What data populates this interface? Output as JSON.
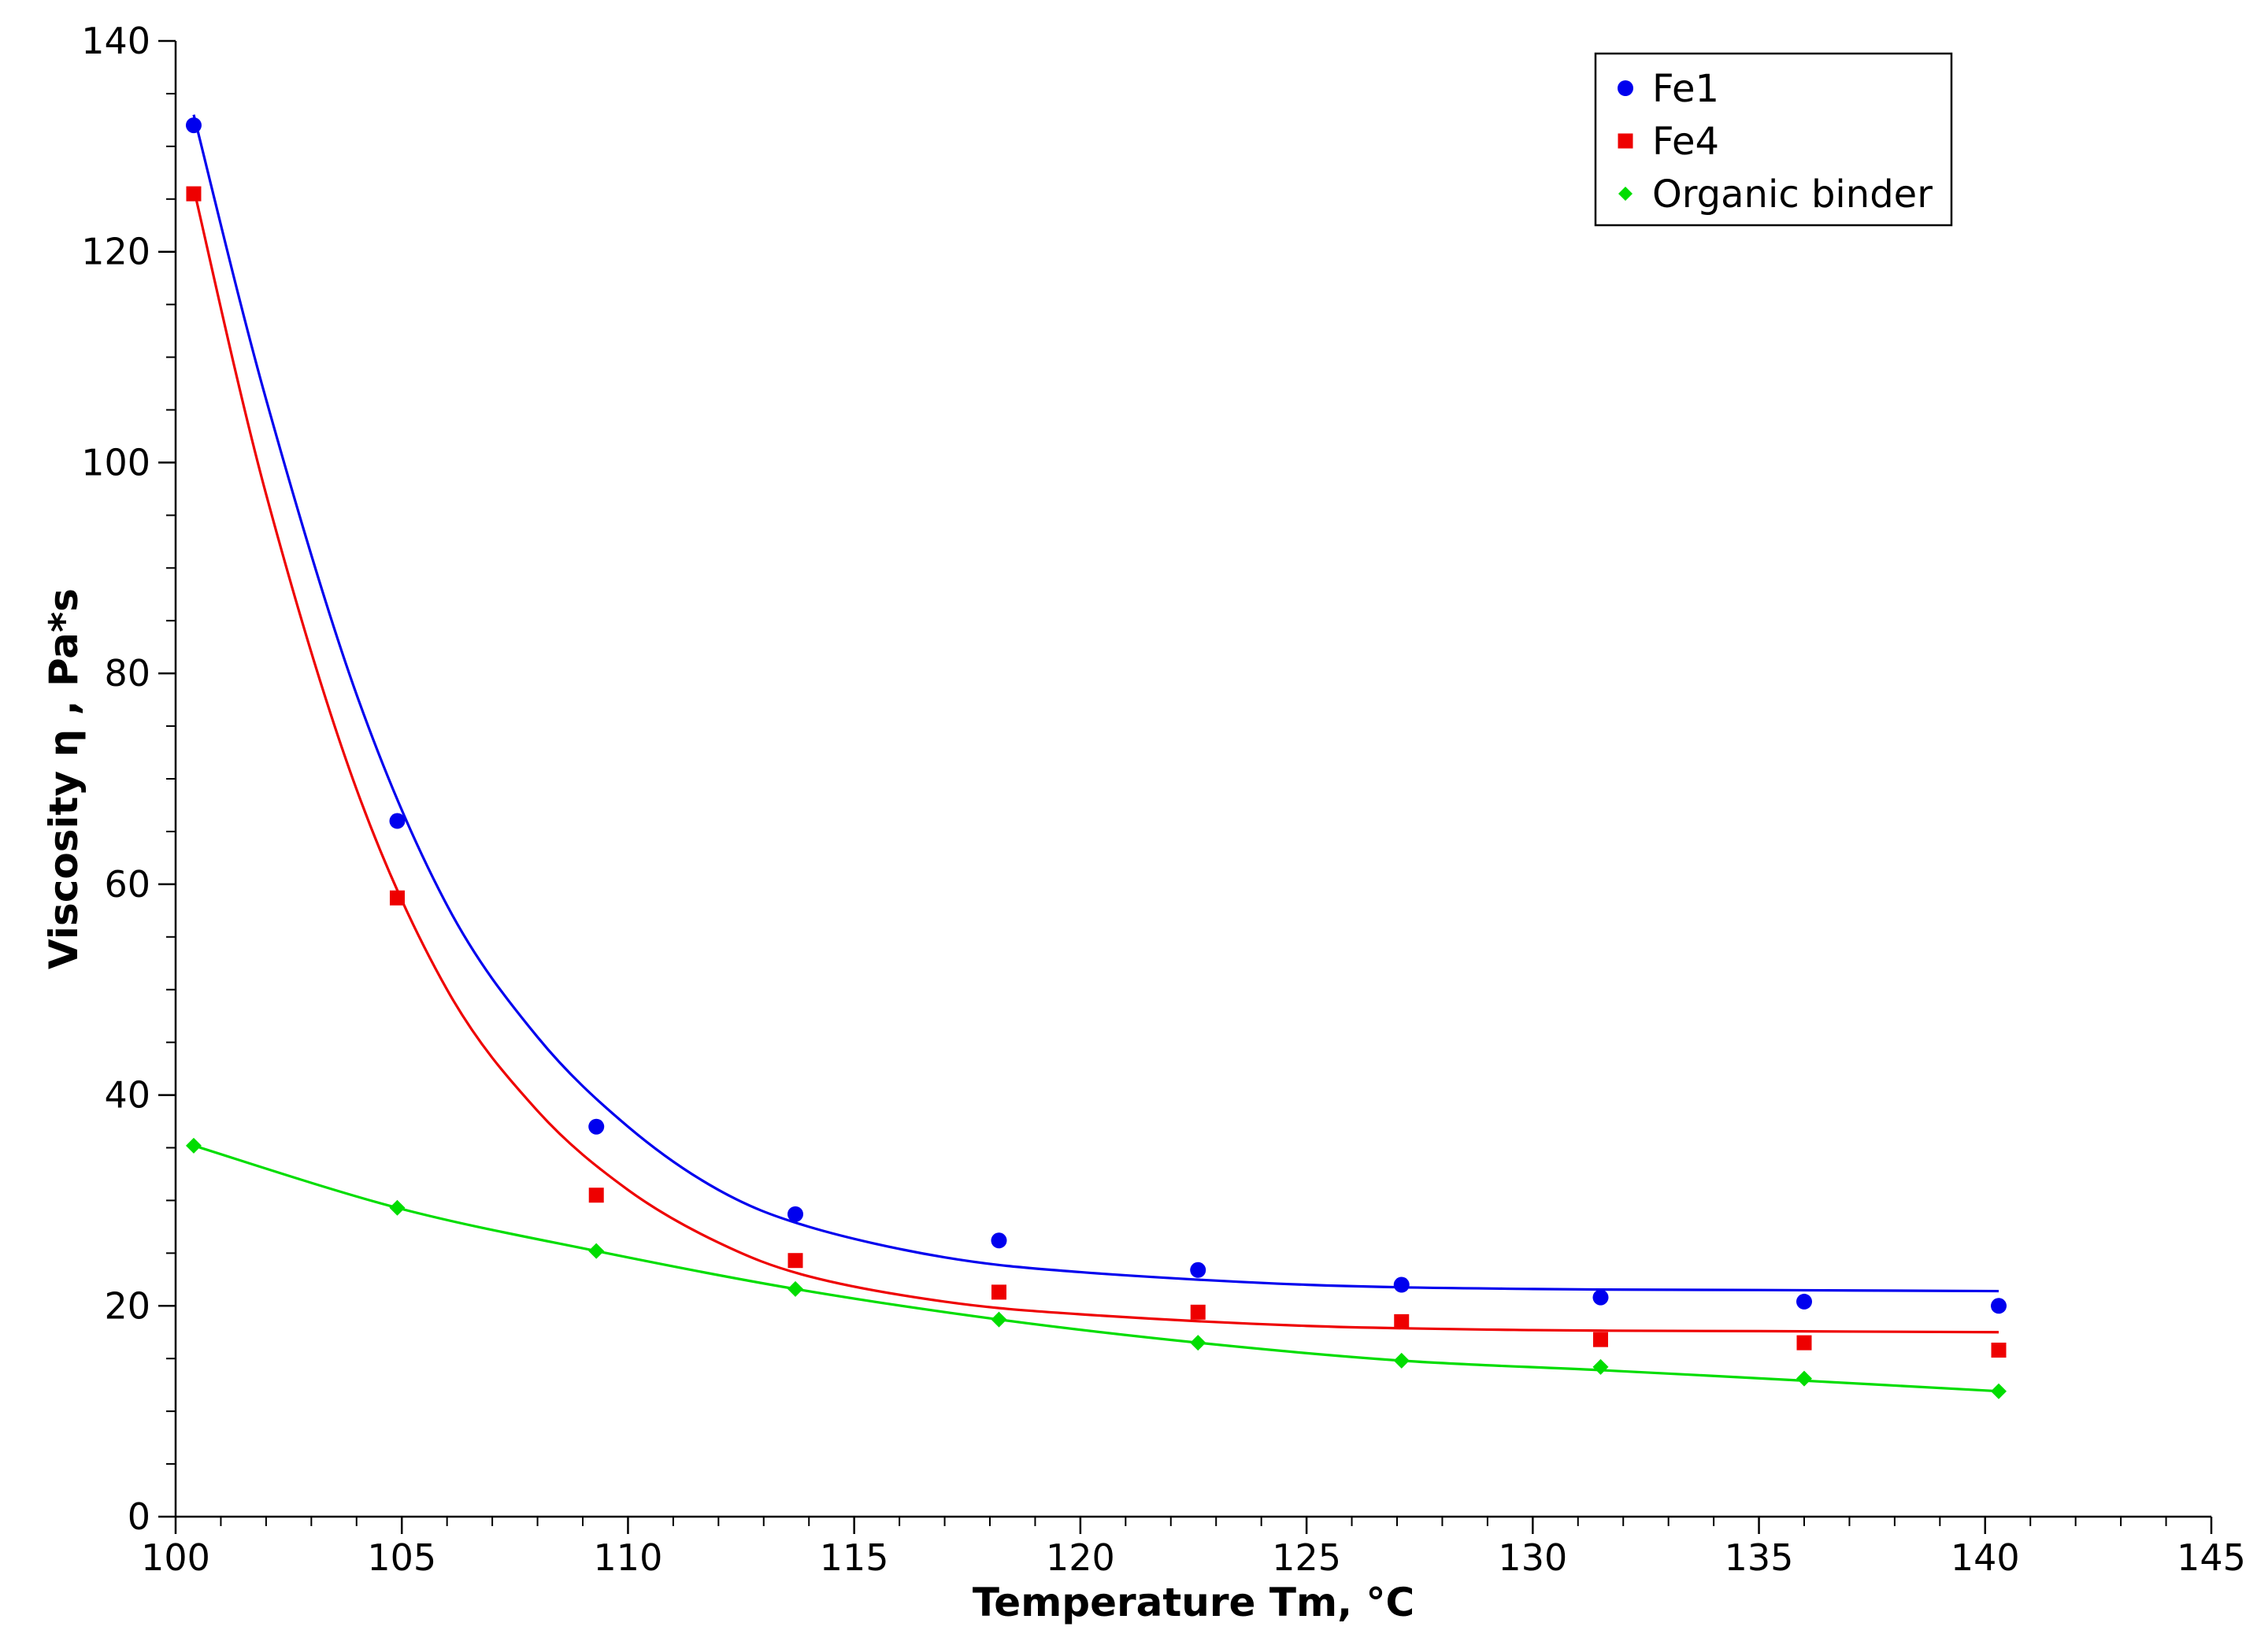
{
  "chart_data": {
    "type": "scatter",
    "title": "",
    "xlabel": "Temperature Tm, °C",
    "ylabel": "Viscosity η , Pa*s",
    "xlim": [
      100,
      145
    ],
    "ylim": [
      0,
      140
    ],
    "x_major_ticks": [
      100,
      105,
      110,
      115,
      120,
      125,
      130,
      135,
      140,
      145
    ],
    "y_major_ticks": [
      0,
      20,
      40,
      60,
      80,
      100,
      120,
      140
    ],
    "grid": false,
    "legend_position": "top-right",
    "series": [
      {
        "name": "Fe1",
        "marker": "circle",
        "color": "#0000ee",
        "points": [
          [
            100.4,
            132.0
          ],
          [
            104.9,
            66.0
          ],
          [
            109.3,
            37.0
          ],
          [
            113.7,
            28.7
          ],
          [
            118.2,
            26.2
          ],
          [
            122.6,
            23.4
          ],
          [
            127.1,
            22.0
          ],
          [
            131.5,
            20.8
          ],
          [
            136.0,
            20.4
          ],
          [
            140.3,
            20.0
          ]
        ],
        "fit_curve": [
          [
            100.4,
            133.0
          ],
          [
            102.0,
            106.0
          ],
          [
            104.0,
            78.0
          ],
          [
            106.0,
            58.0
          ],
          [
            108.0,
            45.5
          ],
          [
            110.0,
            37.0
          ],
          [
            112.0,
            31.0
          ],
          [
            114.0,
            27.5
          ],
          [
            117.0,
            24.6
          ],
          [
            120.0,
            23.2
          ],
          [
            125.0,
            22.0
          ],
          [
            130.0,
            21.6
          ],
          [
            135.0,
            21.5
          ],
          [
            140.3,
            21.4
          ]
        ]
      },
      {
        "name": "Fe4",
        "marker": "square",
        "color": "#ee0000",
        "points": [
          [
            100.4,
            125.5
          ],
          [
            104.9,
            58.7
          ],
          [
            109.3,
            30.5
          ],
          [
            113.7,
            24.3
          ],
          [
            118.2,
            21.3
          ],
          [
            122.6,
            19.4
          ],
          [
            127.1,
            18.5
          ],
          [
            131.5,
            16.8
          ],
          [
            136.0,
            16.5
          ],
          [
            140.3,
            15.8
          ]
        ],
        "fit_curve": [
          [
            100.4,
            126.0
          ],
          [
            102.0,
            97.0
          ],
          [
            104.0,
            69.0
          ],
          [
            106.0,
            50.0
          ],
          [
            108.0,
            38.5
          ],
          [
            110.0,
            31.0
          ],
          [
            112.0,
            26.0
          ],
          [
            114.0,
            22.8
          ],
          [
            117.0,
            20.4
          ],
          [
            120.0,
            19.2
          ],
          [
            125.0,
            18.1
          ],
          [
            130.0,
            17.7
          ],
          [
            135.0,
            17.6
          ],
          [
            140.3,
            17.5
          ]
        ]
      },
      {
        "name": "Organic binder",
        "marker": "diamond",
        "color": "#00dd00",
        "points": [
          [
            100.4,
            35.2
          ],
          [
            104.9,
            29.3
          ],
          [
            109.3,
            25.2
          ],
          [
            113.7,
            21.6
          ],
          [
            118.2,
            18.7
          ],
          [
            122.6,
            16.5
          ],
          [
            127.1,
            14.8
          ],
          [
            131.5,
            14.2
          ],
          [
            136.0,
            13.1
          ],
          [
            140.3,
            11.9
          ]
        ],
        "fit_curve": [
          [
            100.4,
            35.2
          ],
          [
            104.9,
            29.3
          ],
          [
            109.3,
            25.2
          ],
          [
            113.7,
            21.6
          ],
          [
            118.2,
            18.7
          ],
          [
            122.6,
            16.5
          ],
          [
            127.1,
            14.8
          ],
          [
            131.5,
            13.9
          ],
          [
            136.0,
            12.9
          ],
          [
            140.3,
            11.9
          ]
        ]
      }
    ]
  }
}
